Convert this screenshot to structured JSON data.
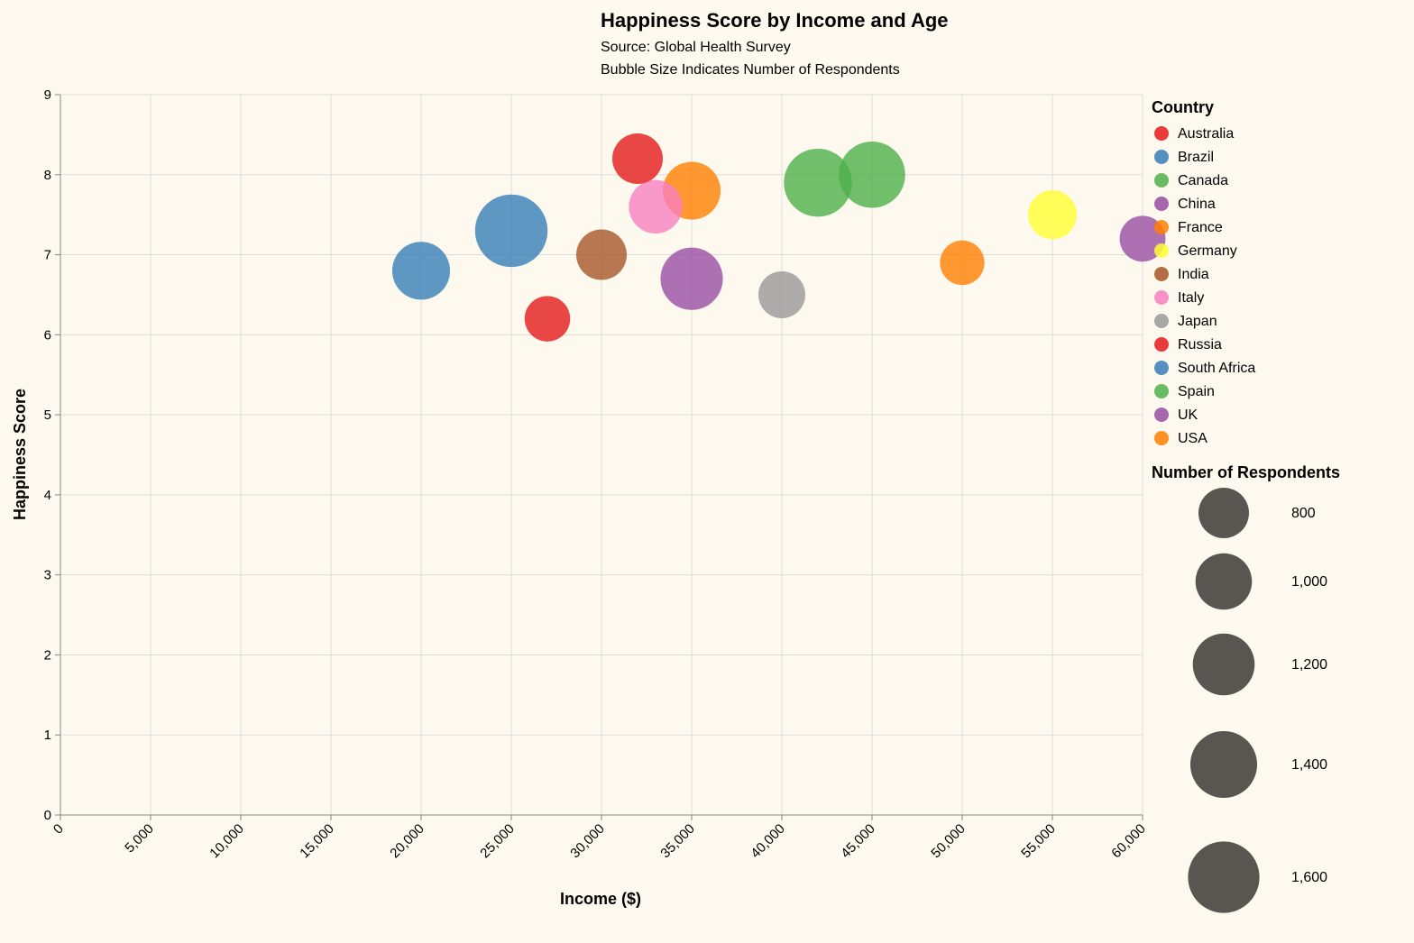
{
  "chart_data": {
    "type": "scatter",
    "title": "Happiness Score by Income and Age",
    "subtitle": [
      "Source: Global Health Survey",
      "Bubble Size Indicates Number of Respondents"
    ],
    "xlabel": "Income ($)",
    "ylabel": "Happiness Score",
    "xlim": [
      0,
      60000
    ],
    "ylim": [
      0,
      9
    ],
    "x_ticks": [
      0,
      5000,
      10000,
      15000,
      20000,
      25000,
      30000,
      35000,
      40000,
      45000,
      50000,
      55000,
      60000
    ],
    "x_tick_labels": [
      "0",
      "5,000",
      "10,000",
      "15,000",
      "20,000",
      "25,000",
      "30,000",
      "35,000",
      "40,000",
      "45,000",
      "50,000",
      "55,000",
      "60,000"
    ],
    "y_ticks": [
      0,
      1,
      2,
      3,
      4,
      5,
      6,
      7,
      8,
      9
    ],
    "y_tick_labels": [
      "0",
      "1",
      "2",
      "3",
      "4",
      "5",
      "6",
      "7",
      "8",
      "9"
    ],
    "grid": true,
    "color_legend": {
      "title": "Country",
      "position": "right",
      "entries": [
        {
          "name": "Australia",
          "color": "#e41a1c"
        },
        {
          "name": "Brazil",
          "color": "#377eb8"
        },
        {
          "name": "Canada",
          "color": "#4daf4a"
        },
        {
          "name": "China",
          "color": "#984ea3"
        },
        {
          "name": "France",
          "color": "#ff7f00"
        },
        {
          "name": "Germany",
          "color": "#ffff33"
        },
        {
          "name": "India",
          "color": "#a65628"
        },
        {
          "name": "Italy",
          "color": "#f781bf"
        },
        {
          "name": "Japan",
          "color": "#999999"
        },
        {
          "name": "Russia",
          "color": "#e41a1c"
        },
        {
          "name": "South Africa",
          "color": "#377eb8"
        },
        {
          "name": "Spain",
          "color": "#4daf4a"
        },
        {
          "name": "UK",
          "color": "#984ea3"
        },
        {
          "name": "USA",
          "color": "#ff7f00"
        }
      ]
    },
    "size_legend": {
      "title": "Number of Respondents",
      "values": [
        800,
        1000,
        1200,
        1400,
        1600
      ],
      "labels": [
        "800",
        "1,000",
        "1,200",
        "1,400",
        "1,600"
      ],
      "color": "#595652"
    },
    "points": [
      {
        "country": "Australia",
        "income": 32000,
        "happiness": 8.2,
        "respondents": 800
      },
      {
        "country": "Russia",
        "income": 27000,
        "happiness": 6.2,
        "respondents": 650
      },
      {
        "country": "France",
        "income": 35000,
        "happiness": 7.8,
        "respondents": 1050
      },
      {
        "country": "USA",
        "income": 50000,
        "happiness": 6.9,
        "respondents": 620
      },
      {
        "country": "South Africa",
        "income": 25000,
        "happiness": 7.3,
        "respondents": 1650
      },
      {
        "country": "Brazil",
        "income": 20000,
        "happiness": 6.8,
        "respondents": 1050
      },
      {
        "country": "India",
        "income": 30000,
        "happiness": 7.0,
        "respondents": 800
      },
      {
        "country": "Italy",
        "income": 33000,
        "happiness": 7.6,
        "respondents": 900
      },
      {
        "country": "China",
        "income": 35000,
        "happiness": 6.7,
        "respondents": 1220
      },
      {
        "country": "Japan",
        "income": 40000,
        "happiness": 6.5,
        "respondents": 690
      },
      {
        "country": "Spain",
        "income": 42000,
        "happiness": 7.9,
        "respondents": 1450
      },
      {
        "country": "Canada",
        "income": 45000,
        "happiness": 8.0,
        "respondents": 1380
      },
      {
        "country": "Germany",
        "income": 55000,
        "happiness": 7.5,
        "respondents": 750
      },
      {
        "country": "UK",
        "income": 60000,
        "happiness": 7.2,
        "respondents": 660
      }
    ]
  }
}
